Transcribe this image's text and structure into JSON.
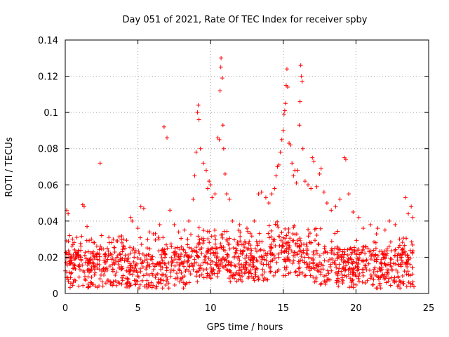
{
  "chart_data": {
    "type": "scatter",
    "title": "Day 051 of 2021, Rate Of TEC Index for receiver spby",
    "xlabel": "GPS time / hours",
    "ylabel": "ROTI / TECUs",
    "xlim": [
      0,
      25
    ],
    "ylim": [
      0,
      0.14
    ],
    "xticks": [
      0,
      5,
      10,
      15,
      20,
      25
    ],
    "xtick_labels": [
      "0",
      "5",
      "10",
      "15",
      "20",
      "25"
    ],
    "yticks": [
      0,
      0.02,
      0.04,
      0.06,
      0.08,
      0.1,
      0.12,
      0.14
    ],
    "ytick_labels": [
      "0",
      "0.02",
      "0.04",
      "0.06",
      "0.08",
      "0.1",
      "0.12",
      "0.14"
    ],
    "grid": true,
    "marker": "+",
    "marker_color": "#ff0000",
    "series": [
      {
        "name": "ROTI",
        "points": [
          [
            0.1,
            0.046
          ],
          [
            0.2,
            0.044
          ],
          [
            0.3,
            0.032
          ],
          [
            0.5,
            0.03
          ],
          [
            0.8,
            0.031
          ],
          [
            1.2,
            0.049
          ],
          [
            1.3,
            0.048
          ],
          [
            1.5,
            0.037
          ],
          [
            1.8,
            0.03
          ],
          [
            2.0,
            0.028
          ],
          [
            2.4,
            0.072
          ],
          [
            2.5,
            0.032
          ],
          [
            3.0,
            0.031
          ],
          [
            3.3,
            0.03
          ],
          [
            3.6,
            0.029
          ],
          [
            4.0,
            0.03
          ],
          [
            4.5,
            0.042
          ],
          [
            4.6,
            0.04
          ],
          [
            5.0,
            0.036
          ],
          [
            5.2,
            0.048
          ],
          [
            5.4,
            0.047
          ],
          [
            5.8,
            0.034
          ],
          [
            6.2,
            0.033
          ],
          [
            6.5,
            0.038
          ],
          [
            6.8,
            0.092
          ],
          [
            7.0,
            0.086
          ],
          [
            7.2,
            0.046
          ],
          [
            7.5,
            0.038
          ],
          [
            7.8,
            0.034
          ],
          [
            8.2,
            0.035
          ],
          [
            8.5,
            0.04
          ],
          [
            8.8,
            0.052
          ],
          [
            8.9,
            0.065
          ],
          [
            9.0,
            0.078
          ],
          [
            9.1,
            0.1
          ],
          [
            9.15,
            0.104
          ],
          [
            9.2,
            0.096
          ],
          [
            9.3,
            0.08
          ],
          [
            9.5,
            0.072
          ],
          [
            9.7,
            0.068
          ],
          [
            9.8,
            0.058
          ],
          [
            9.9,
            0.062
          ],
          [
            10.0,
            0.06
          ],
          [
            10.1,
            0.053
          ],
          [
            10.3,
            0.055
          ],
          [
            10.5,
            0.086
          ],
          [
            10.6,
            0.085
          ],
          [
            10.65,
            0.112
          ],
          [
            10.7,
            0.125
          ],
          [
            10.72,
            0.13
          ],
          [
            10.8,
            0.119
          ],
          [
            10.85,
            0.093
          ],
          [
            10.9,
            0.08
          ],
          [
            11.0,
            0.066
          ],
          [
            11.1,
            0.055
          ],
          [
            11.3,
            0.052
          ],
          [
            11.5,
            0.04
          ],
          [
            12.0,
            0.038
          ],
          [
            12.5,
            0.036
          ],
          [
            13.0,
            0.04
          ],
          [
            13.3,
            0.055
          ],
          [
            13.5,
            0.056
          ],
          [
            13.8,
            0.053
          ],
          [
            14.0,
            0.05
          ],
          [
            14.2,
            0.055
          ],
          [
            14.4,
            0.058
          ],
          [
            14.5,
            0.065
          ],
          [
            14.6,
            0.07
          ],
          [
            14.7,
            0.071
          ],
          [
            14.8,
            0.078
          ],
          [
            14.9,
            0.085
          ],
          [
            15.0,
            0.09
          ],
          [
            15.05,
            0.099
          ],
          [
            15.1,
            0.101
          ],
          [
            15.15,
            0.105
          ],
          [
            15.2,
            0.115
          ],
          [
            15.25,
            0.124
          ],
          [
            15.3,
            0.114
          ],
          [
            15.4,
            0.083
          ],
          [
            15.5,
            0.082
          ],
          [
            15.6,
            0.072
          ],
          [
            15.7,
            0.065
          ],
          [
            15.8,
            0.068
          ],
          [
            15.9,
            0.061
          ],
          [
            16.0,
            0.068
          ],
          [
            16.1,
            0.093
          ],
          [
            16.15,
            0.106
          ],
          [
            16.2,
            0.126
          ],
          [
            16.25,
            0.12
          ],
          [
            16.3,
            0.117
          ],
          [
            16.35,
            0.08
          ],
          [
            16.5,
            0.062
          ],
          [
            16.7,
            0.06
          ],
          [
            16.9,
            0.058
          ],
          [
            17.0,
            0.075
          ],
          [
            17.1,
            0.073
          ],
          [
            17.3,
            0.059
          ],
          [
            17.5,
            0.066
          ],
          [
            17.6,
            0.069
          ],
          [
            17.8,
            0.056
          ],
          [
            18.0,
            0.05
          ],
          [
            18.3,
            0.046
          ],
          [
            18.6,
            0.048
          ],
          [
            18.9,
            0.052
          ],
          [
            19.2,
            0.075
          ],
          [
            19.3,
            0.074
          ],
          [
            19.5,
            0.055
          ],
          [
            19.8,
            0.045
          ],
          [
            20.2,
            0.042
          ],
          [
            20.5,
            0.036
          ],
          [
            21.0,
            0.038
          ],
          [
            21.5,
            0.036
          ],
          [
            22.0,
            0.035
          ],
          [
            22.3,
            0.04
          ],
          [
            22.7,
            0.038
          ],
          [
            23.0,
            0.03
          ],
          [
            23.4,
            0.053
          ],
          [
            23.6,
            0.044
          ],
          [
            23.8,
            0.048
          ],
          [
            23.9,
            0.042
          ]
        ]
      }
    ]
  }
}
